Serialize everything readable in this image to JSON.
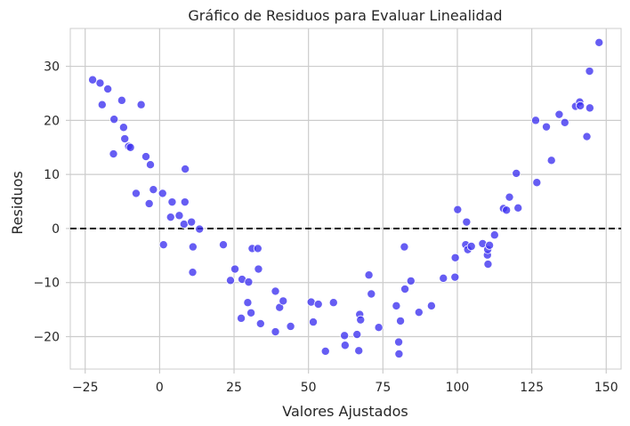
{
  "chart_data": {
    "type": "scatter",
    "title": "Gráfico de Residuos para Evaluar Linealidad",
    "xlabel": "Valores Ajustados",
    "ylabel": "Residuos",
    "xlim": [
      -30,
      155
    ],
    "ylim": [
      -26,
      37
    ],
    "xticks": [
      -25,
      0,
      25,
      50,
      75,
      100,
      125,
      150
    ],
    "yticks": [
      -20,
      -10,
      0,
      10,
      20,
      30
    ],
    "xtick_labels": [
      "−25",
      "0",
      "25",
      "50",
      "75",
      "100",
      "125",
      "150"
    ],
    "ytick_labels": [
      "−20",
      "−10",
      "0",
      "10",
      "20",
      "30"
    ],
    "grid": true,
    "point_color": "#3b2ff0",
    "reference_line": {
      "y": 0,
      "style": "dashed",
      "color": "#000000"
    },
    "points": [
      [
        -22.5,
        27.5
      ],
      [
        -20,
        26.9
      ],
      [
        -19.3,
        22.9
      ],
      [
        -17.4,
        25.8
      ],
      [
        -15.3,
        20.2
      ],
      [
        -15.5,
        13.8
      ],
      [
        -12.7,
        23.7
      ],
      [
        -12.1,
        18.7
      ],
      [
        -11.7,
        16.6
      ],
      [
        -10.4,
        15.2
      ],
      [
        -9.8,
        15.0
      ],
      [
        -6.2,
        22.9
      ],
      [
        -7.9,
        6.5
      ],
      [
        -4.6,
        13.3
      ],
      [
        -3.1,
        11.8
      ],
      [
        -3.5,
        4.6
      ],
      [
        -2.1,
        7.2
      ],
      [
        1,
        6.5
      ],
      [
        1.3,
        -3.0
      ],
      [
        3.7,
        2.1
      ],
      [
        4.2,
        4.9
      ],
      [
        6.6,
        2.4
      ],
      [
        8.2,
        0.8
      ],
      [
        8.6,
        11.0
      ],
      [
        8.5,
        4.9
      ],
      [
        10.7,
        1.2
      ],
      [
        11.2,
        -3.4
      ],
      [
        11.1,
        -8.1
      ],
      [
        13.4,
        -0.1
      ],
      [
        21.4,
        -3.0
      ],
      [
        23.8,
        -9.6
      ],
      [
        25.3,
        -7.5
      ],
      [
        27.4,
        -16.6
      ],
      [
        27.7,
        -9.4
      ],
      [
        29.6,
        -13.7
      ],
      [
        29.9,
        -9.9
      ],
      [
        30.7,
        -15.6
      ],
      [
        31.1,
        -3.7
      ],
      [
        33,
        -3.7
      ],
      [
        33.2,
        -7.5
      ],
      [
        33.9,
        -17.6
      ],
      [
        38.9,
        -11.6
      ],
      [
        38.9,
        -19.1
      ],
      [
        40.3,
        -14.6
      ],
      [
        41.5,
        -13.4
      ],
      [
        44,
        -18.1
      ],
      [
        50.9,
        -13.6
      ],
      [
        51.6,
        -17.3
      ],
      [
        53.3,
        -14.0
      ],
      [
        55.7,
        -22.7
      ],
      [
        58.4,
        -13.7
      ],
      [
        62.1,
        -19.8
      ],
      [
        62.3,
        -21.6
      ],
      [
        66.3,
        -19.6
      ],
      [
        66.9,
        -22.6
      ],
      [
        67.2,
        -15.9
      ],
      [
        67.5,
        -16.9
      ],
      [
        70.3,
        -8.6
      ],
      [
        71.1,
        -12.1
      ],
      [
        73.6,
        -18.3
      ],
      [
        79.5,
        -14.3
      ],
      [
        80.3,
        -21.0
      ],
      [
        80.4,
        -23.2
      ],
      [
        80.9,
        -17.1
      ],
      [
        82.2,
        -3.4
      ],
      [
        82.4,
        -11.2
      ],
      [
        84.4,
        -9.7
      ],
      [
        87.1,
        -15.5
      ],
      [
        91.3,
        -14.3
      ],
      [
        95.3,
        -9.2
      ],
      [
        99.2,
        -9.0
      ],
      [
        99.3,
        -5.4
      ],
      [
        100.1,
        3.5
      ],
      [
        102.8,
        -3.0
      ],
      [
        103.1,
        1.2
      ],
      [
        103.5,
        -3.9
      ],
      [
        104.7,
        -3.3
      ],
      [
        108.5,
        -2.8
      ],
      [
        110.1,
        -4.9
      ],
      [
        110.2,
        -3.9
      ],
      [
        110.3,
        -6.6
      ],
      [
        110.8,
        -3.1
      ],
      [
        112.5,
        -1.2
      ],
      [
        115.5,
        3.7
      ],
      [
        116.5,
        3.4
      ],
      [
        117.5,
        5.8
      ],
      [
        119.8,
        10.2
      ],
      [
        120.4,
        3.8
      ],
      [
        126.3,
        20.0
      ],
      [
        126.7,
        8.5
      ],
      [
        129.9,
        18.8
      ],
      [
        131.6,
        12.6
      ],
      [
        134.2,
        21.1
      ],
      [
        136.1,
        19.6
      ],
      [
        139.7,
        22.6
      ],
      [
        141.1,
        23.4
      ],
      [
        141.3,
        22.7
      ],
      [
        143.5,
        17.0
      ],
      [
        144.4,
        29.1
      ],
      [
        144.5,
        22.3
      ],
      [
        147.6,
        34.4
      ]
    ]
  }
}
